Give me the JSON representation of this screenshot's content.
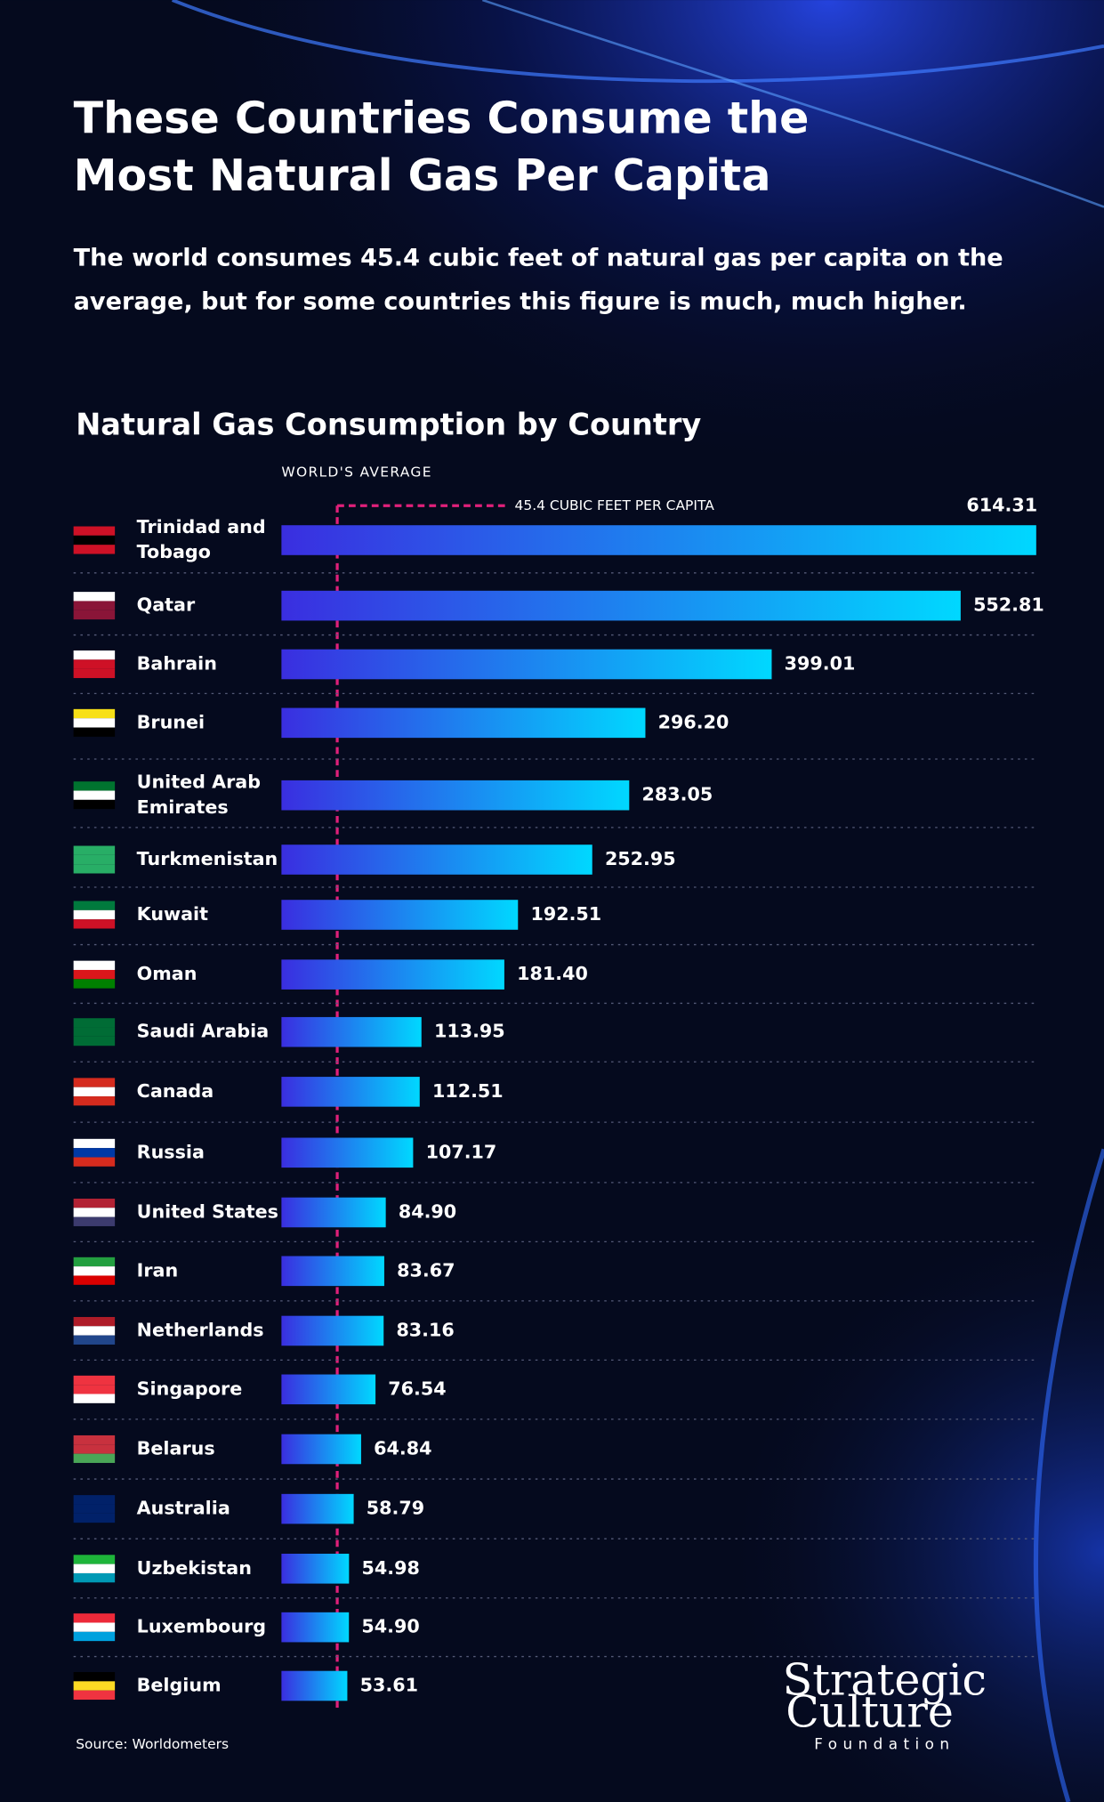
{
  "chart_data": {
    "type": "bar",
    "orientation": "horizontal",
    "title": "These Countries Consume the Most Natural Gas Per Capita",
    "subtitle": "The world consumes 45.4 cubic feet of natural gas per capita on the average, but for some countries this figure is much, much higher.",
    "chart_title": "Natural Gas Consumption by Country",
    "categories": [
      "Trinidad and Tobago",
      "Qatar",
      "Bahrain",
      "Brunei",
      "United Arab Emirates",
      "Turkmenistan",
      "Kuwait",
      "Oman",
      "Saudi Arabia",
      "Canada",
      "Russia",
      "United States",
      "Iran",
      "Netherlands",
      "Singapore",
      "Belarus",
      "Australia",
      "Uzbekistan",
      "Luxembourg",
      "Belgium"
    ],
    "values": [
      614.31,
      552.81,
      399.01,
      296.2,
      283.05,
      252.95,
      192.51,
      181.4,
      113.95,
      112.51,
      107.17,
      84.9,
      83.67,
      83.16,
      76.54,
      64.84,
      58.79,
      54.98,
      54.9,
      53.61
    ],
    "value_labels": [
      "614.31",
      "552.81",
      "399.01",
      "296.20",
      "283.05",
      "252.95",
      "192.51",
      "181.40",
      "113.95",
      "112.51",
      "107.17",
      "84.90",
      "83.67",
      "83.16",
      "76.54",
      "64.84",
      "58.79",
      "54.98",
      "54.90",
      "53.61"
    ],
    "colors": [
      "#3a2ee0",
      "#00d8ff"
    ],
    "xlim": [
      0,
      614.31
    ],
    "reference_line": {
      "value": 45.4,
      "title": "WORLD'S AVERAGE",
      "label": "45.4 CUBIC FEET PER CAPITA",
      "color": "#e0207a"
    },
    "source": "Source: Worldometers",
    "logo": {
      "line1": "Strategic",
      "line2": "Culture",
      "line3": "Foundation"
    }
  }
}
